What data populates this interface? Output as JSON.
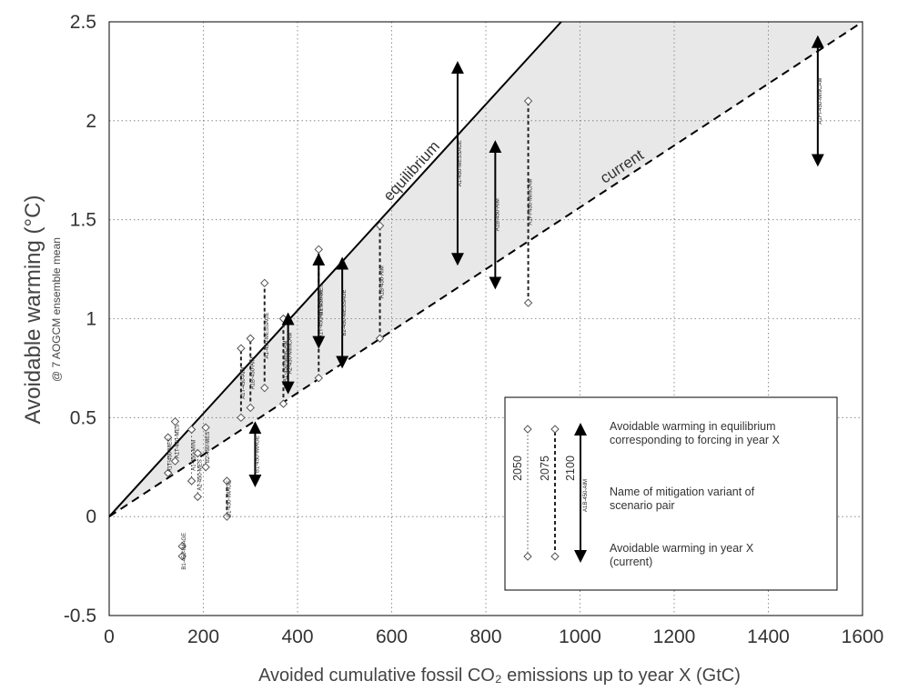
{
  "chart_data": {
    "type": "scatter",
    "xlabel": "Avoided cumulative fossil CO₂ emissions up to year X (GtC)",
    "ylabel": "Avoidable warming (°C)",
    "ylabel_sub": "@ 7 AOGCM ensemble mean",
    "xlim": [
      0,
      1600
    ],
    "ylim": [
      -0.5,
      2.5
    ],
    "xticks": [
      "0",
      "200",
      "400",
      "600",
      "800",
      "1000",
      "1200",
      "1400",
      "1600"
    ],
    "yticks": [
      "-0.5",
      "0",
      "0.5",
      "1",
      "1.5",
      "2",
      "2.5"
    ],
    "grid": true,
    "background_color": "#e8e8e8",
    "lines": [
      {
        "name": "equilibrium",
        "slope": 0.002604,
        "style": "solid"
      },
      {
        "name": "current",
        "slope": 0.0015625,
        "style": "dashed"
      }
    ],
    "series": [
      {
        "name": "2050",
        "marker": "diamond",
        "points": [
          {
            "x": 125,
            "low": 0.22,
            "high": 0.4,
            "label": "A1T-450-MES"
          },
          {
            "x": 140,
            "low": 0.28,
            "high": 0.48,
            "label": "A1T-450-MES"
          },
          {
            "x": 155,
            "low": -0.2,
            "high": -0.15,
            "label": "B1-450-IMAGE"
          },
          {
            "x": 175,
            "low": 0.18,
            "high": 0.44,
            "label": "A1-450-MINI"
          },
          {
            "x": 188,
            "low": 0.1,
            "high": 0.32,
            "label": "A2-450-MES"
          },
          {
            "x": 205,
            "low": 0.25,
            "high": 0.45,
            "label": "B2-450-MES"
          }
        ]
      },
      {
        "name": "2075",
        "marker": "diamond",
        "points": [
          {
            "x": 250,
            "low": 0.0,
            "high": 0.18,
            "label": "B1-450-IMAGE"
          },
          {
            "x": 280,
            "low": 0.5,
            "high": 0.85,
            "label": "A1T-450-AIM"
          },
          {
            "x": 300,
            "low": 0.55,
            "high": 0.9,
            "label": "A1B-450-AIM"
          },
          {
            "x": 330,
            "low": 0.65,
            "high": 1.18,
            "label": "A1-450-MESSAGE"
          },
          {
            "x": 370,
            "low": 0.57,
            "high": 1.0,
            "label": "A1-450-MiniCAM"
          },
          {
            "x": 445,
            "low": 0.7,
            "high": 1.35,
            "label": "A1T-450-MESSAGE"
          },
          {
            "x": 575,
            "low": 0.9,
            "high": 1.47,
            "label": "A1B-450-AIM"
          },
          {
            "x": 890,
            "low": 1.08,
            "high": 2.1,
            "label": "A1FI-450-MiniCAM"
          }
        ]
      },
      {
        "name": "2100",
        "marker": "arrow",
        "points": [
          {
            "x": 310,
            "low": 0.18,
            "high": 0.45,
            "label": "B1-450-IMAGE"
          },
          {
            "x": 380,
            "low": 0.65,
            "high": 1.0,
            "label": "A2-450-MiniCAM"
          },
          {
            "x": 445,
            "low": 0.88,
            "high": 1.3,
            "label": "A1T-450-MES"
          },
          {
            "x": 495,
            "low": 0.78,
            "high": 1.28,
            "label": "B2-450-MESSAGE"
          },
          {
            "x": 740,
            "low": 1.3,
            "high": 2.27,
            "label": "A1-450-MESSAGE"
          },
          {
            "x": 820,
            "low": 1.18,
            "high": 1.87,
            "label": "A1B-450-AIM"
          },
          {
            "x": 1505,
            "low": 1.8,
            "high": 2.4,
            "label": "A1FI-450-MiniCAM"
          }
        ]
      }
    ],
    "annotations": [
      {
        "text": "equilibrium"
      },
      {
        "text": "current"
      }
    ],
    "legend": {
      "placement": "bottom-right",
      "years": [
        "2050",
        "2075",
        "2100"
      ],
      "sample_label": "A1B-450-AIM",
      "texts": [
        "Avoidable warming in equilibrium",
        "corresponding to forcing in year X",
        "Name of mitigation variant of",
        "scenario pair",
        "Avoidable warming in year X",
        "(current)"
      ]
    }
  }
}
